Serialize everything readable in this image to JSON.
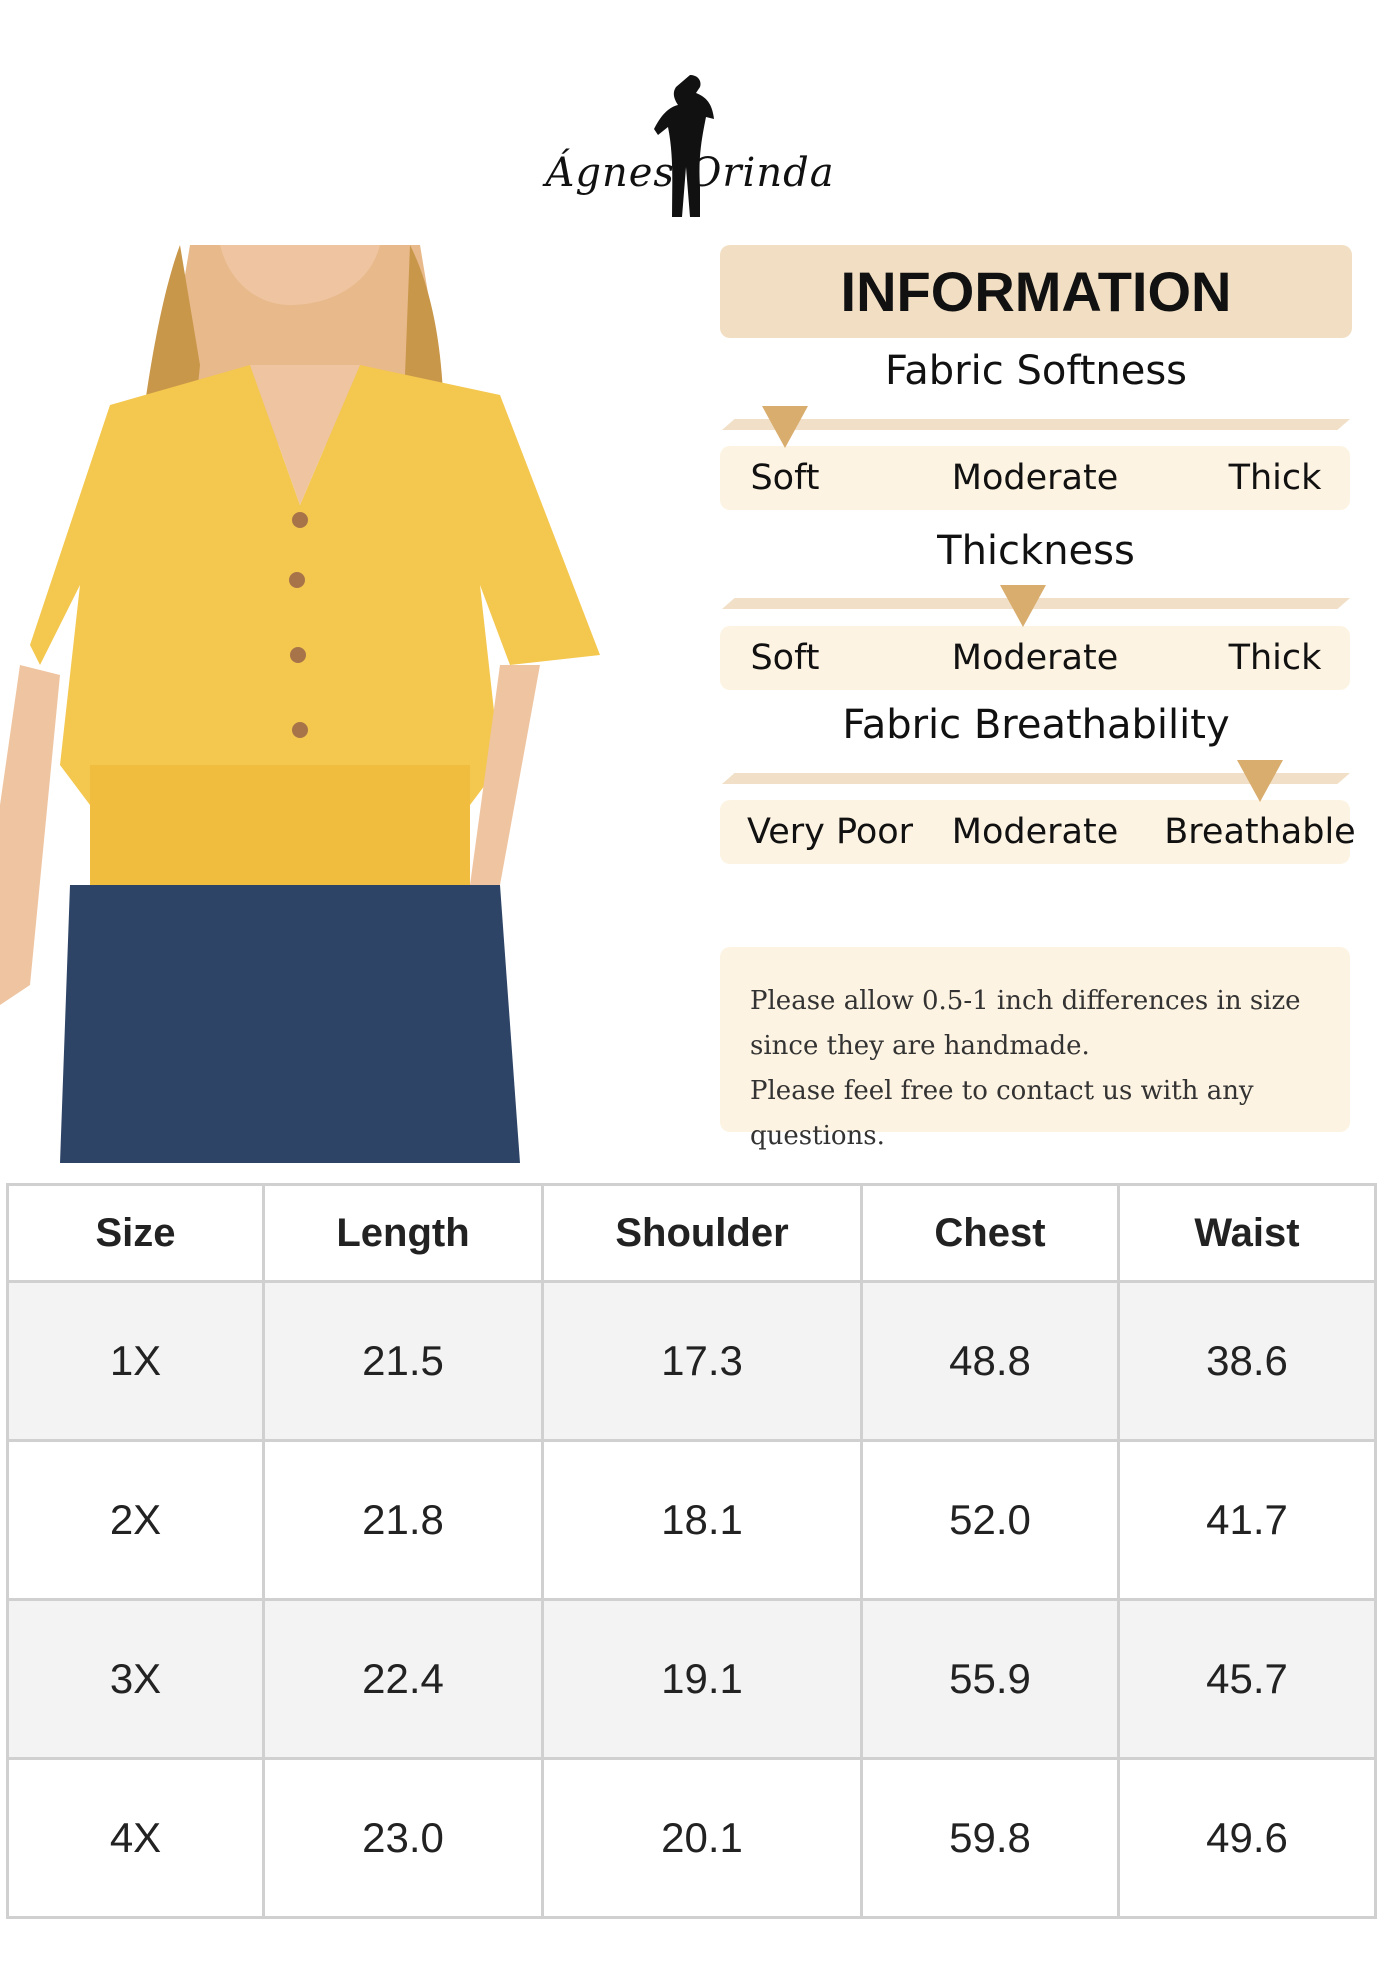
{
  "brand": {
    "logo_text": "Ágnes Orinda"
  },
  "info": {
    "title": "INFORMATION",
    "meters": [
      {
        "title": "Fabric Softness",
        "labels": [
          "Soft",
          "Moderate",
          "Thick"
        ],
        "selected": "Soft",
        "level": 0
      },
      {
        "title": "Thickness",
        "labels": [
          "Soft",
          "Moderate",
          "Thick"
        ],
        "selected": "Moderate",
        "level": 0.5
      },
      {
        "title": "Fabric Breathability",
        "labels": [
          "Very Poor",
          "Moderate",
          "Breathable"
        ],
        "selected": "Breathable",
        "level": 1
      }
    ],
    "note_lines": [
      "Please allow 0.5-1 inch differences in size",
      "since they are handmade.",
      "Please feel free to contact us with any questions."
    ]
  },
  "colors": {
    "header_bg": "#f2dfc3",
    "scale_bg": "#fdf3e2",
    "pointer": "#d9ad6e",
    "blouse": "#f4c74f",
    "jeans": "#2d4466"
  },
  "size_table": {
    "headers": [
      "Size",
      "Length",
      "Shoulder",
      "Chest",
      "Waist"
    ],
    "rows": [
      [
        "1X",
        "21.5",
        "17.3",
        "48.8",
        "38.6"
      ],
      [
        "2X",
        "21.8",
        "18.1",
        "52.0",
        "41.7"
      ],
      [
        "3X",
        "22.4",
        "19.1",
        "55.9",
        "45.7"
      ],
      [
        "4X",
        "23.0",
        "20.1",
        "59.8",
        "49.6"
      ]
    ]
  }
}
